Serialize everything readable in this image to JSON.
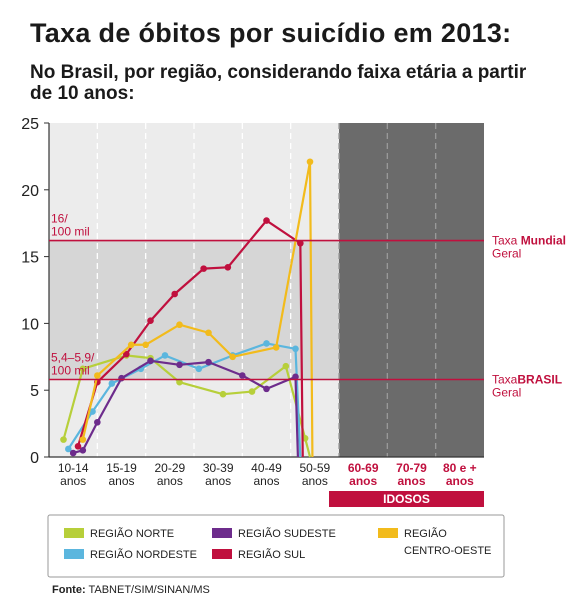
{
  "title": "Taxa de óbitos por suicídio em 2013:",
  "subtitle": "No Brasil, por região, considerando faixa etária a partir de 10 anos:",
  "source_label": "Fonte:",
  "source_text": "TABNET/SIM/SINAN/MS",
  "chart_data": {
    "type": "line",
    "categories": [
      [
        "10-14",
        "anos"
      ],
      [
        "15-19",
        "anos"
      ],
      [
        "20-29",
        "anos"
      ],
      [
        "30-39",
        "anos"
      ],
      [
        "40-49",
        "anos"
      ],
      [
        "50-59",
        "anos"
      ],
      [
        "60-69",
        "anos"
      ],
      [
        "70-79",
        "anos"
      ],
      [
        "80 e +",
        "anos"
      ]
    ],
    "ylim": [
      0,
      25
    ],
    "yticks": [
      0,
      5,
      10,
      15,
      20,
      25
    ],
    "elderly_band_label": "IDOSOS",
    "elderly_categories_from": 6,
    "reference_lines": [
      {
        "value": 16.2,
        "left_label": [
          "16/",
          "100 mil"
        ],
        "right_label": [
          "Taxa ",
          "Mundial",
          "Geral"
        ]
      },
      {
        "value": 5.8,
        "left_label": [
          "5,4–5,9/",
          "100 mil"
        ],
        "right_label": [
          "Taxa",
          "BRASIL",
          "Geral"
        ]
      }
    ],
    "series": [
      {
        "name": "REGIÃO NORTE",
        "color": "#b7cf3a",
        "points": [
          [
            -0.2,
            1.3
          ],
          [
            0.2,
            6.6
          ],
          [
            1.1,
            7.6
          ],
          [
            1.6,
            7.4
          ],
          [
            2.2,
            5.6
          ],
          [
            3.1,
            4.7
          ],
          [
            3.7,
            4.9
          ],
          [
            4.4,
            6.8
          ],
          [
            4.8,
            1.4
          ],
          [
            4.9,
            0
          ]
        ]
      },
      {
        "name": "REGIÃO NORDESTE",
        "color": "#5bb6de",
        "points": [
          [
            -0.1,
            0.6
          ],
          [
            0.4,
            3.4
          ],
          [
            0.8,
            5.5
          ],
          [
            1.4,
            6.6
          ],
          [
            1.9,
            7.6
          ],
          [
            2.6,
            6.6
          ],
          [
            3.3,
            7.6
          ],
          [
            4.0,
            8.5
          ],
          [
            4.6,
            8.1
          ],
          [
            4.7,
            0
          ]
        ]
      },
      {
        "name": "REGIÃO SUDESTE",
        "color": "#6d2c8c",
        "points": [
          [
            0.0,
            0.3
          ],
          [
            0.2,
            0.5
          ],
          [
            0.5,
            2.6
          ],
          [
            1.0,
            5.9
          ],
          [
            1.6,
            7.2
          ],
          [
            2.2,
            6.9
          ],
          [
            2.8,
            7.1
          ],
          [
            3.5,
            6.1
          ],
          [
            4.0,
            5.1
          ],
          [
            4.6,
            6.0
          ],
          [
            4.65,
            0
          ]
        ]
      },
      {
        "name": "REGIÃO SUL",
        "color": "#c0103e",
        "points": [
          [
            0.1,
            0.8
          ],
          [
            0.5,
            5.6
          ],
          [
            1.1,
            7.7
          ],
          [
            1.6,
            10.2
          ],
          [
            2.1,
            12.2
          ],
          [
            2.7,
            14.1
          ],
          [
            3.2,
            14.2
          ],
          [
            4.0,
            17.7
          ],
          [
            4.7,
            16.0
          ],
          [
            4.75,
            0
          ]
        ]
      },
      {
        "name": "REGIÃO CENTRO-OESTE",
        "color": "#f2bb1c",
        "points": [
          [
            0.2,
            1.3
          ],
          [
            0.5,
            6.1
          ],
          [
            1.2,
            8.4
          ],
          [
            1.5,
            8.4
          ],
          [
            2.2,
            9.9
          ],
          [
            2.8,
            9.3
          ],
          [
            3.3,
            7.5
          ],
          [
            4.2,
            8.2
          ],
          [
            4.9,
            22.1
          ],
          [
            4.95,
            0
          ]
        ]
      }
    ],
    "legend": {
      "items": [
        {
          "label": "REGIÃO NORTE",
          "color": "#b7cf3a"
        },
        {
          "label": "REGIÃO SUDESTE",
          "color": "#6d2c8c"
        },
        {
          "label": "REGIÃO",
          "label2": "CENTRO-OESTE",
          "color": "#f2bb1c"
        },
        {
          "label": "REGIÃO NORDESTE",
          "color": "#5bb6de"
        },
        {
          "label": "REGIÃO SUL",
          "color": "#c0103e"
        }
      ]
    },
    "grid": true
  }
}
